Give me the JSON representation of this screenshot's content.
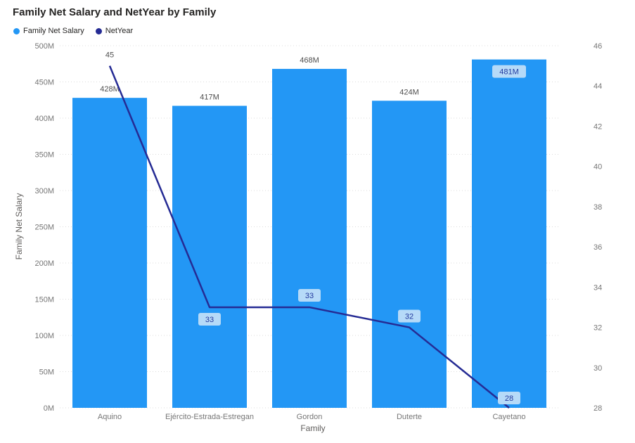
{
  "title": "Family Net Salary and NetYear by Family",
  "legend": {
    "items": [
      {
        "label": "Family Net Salary",
        "color": "#2397F5"
      },
      {
        "label": "NetYear",
        "color": "#252B94"
      }
    ]
  },
  "colors": {
    "bar": "#2397F5",
    "line": "#252B94",
    "label_box_bg": "#B6DAF8",
    "label_box_text": "#243A9E",
    "axis_text": "#767676",
    "grid": "#DCDCDC",
    "title_text": "#252423"
  },
  "chart_data": {
    "type": "combo-bar-line",
    "title": "Family Net Salary and NetYear by Family",
    "categories": [
      "Aquino",
      "Ejército-Estrada-Estregan",
      "Gordon",
      "Duterte",
      "Cayetano"
    ],
    "series": [
      {
        "name": "Family Net Salary",
        "type": "bar",
        "axis": "left",
        "color": "#2397F5",
        "values": [
          428,
          417,
          468,
          424,
          481
        ],
        "labels": [
          "428M",
          "417M",
          "468M",
          "424M",
          "481M"
        ]
      },
      {
        "name": "NetYear",
        "type": "line",
        "axis": "right",
        "color": "#252B94",
        "values": [
          45,
          33,
          33,
          32,
          28
        ],
        "labels": [
          "45",
          "33",
          "33",
          "32",
          "28"
        ]
      }
    ],
    "left_axis": {
      "title": "Family Net Salary",
      "unit": "M",
      "min": 0,
      "max": 500,
      "step": 50,
      "tick_labels": [
        "0M",
        "50M",
        "100M",
        "150M",
        "200M",
        "250M",
        "300M",
        "350M",
        "400M",
        "450M",
        "500M"
      ]
    },
    "right_axis": {
      "min": 28,
      "max": 46,
      "step": 2,
      "tick_labels": [
        "28",
        "30",
        "32",
        "34",
        "36",
        "38",
        "40",
        "42",
        "44",
        "46"
      ]
    },
    "x_axis": {
      "title": "Family"
    },
    "grid": true,
    "legend_position": "top-left"
  }
}
